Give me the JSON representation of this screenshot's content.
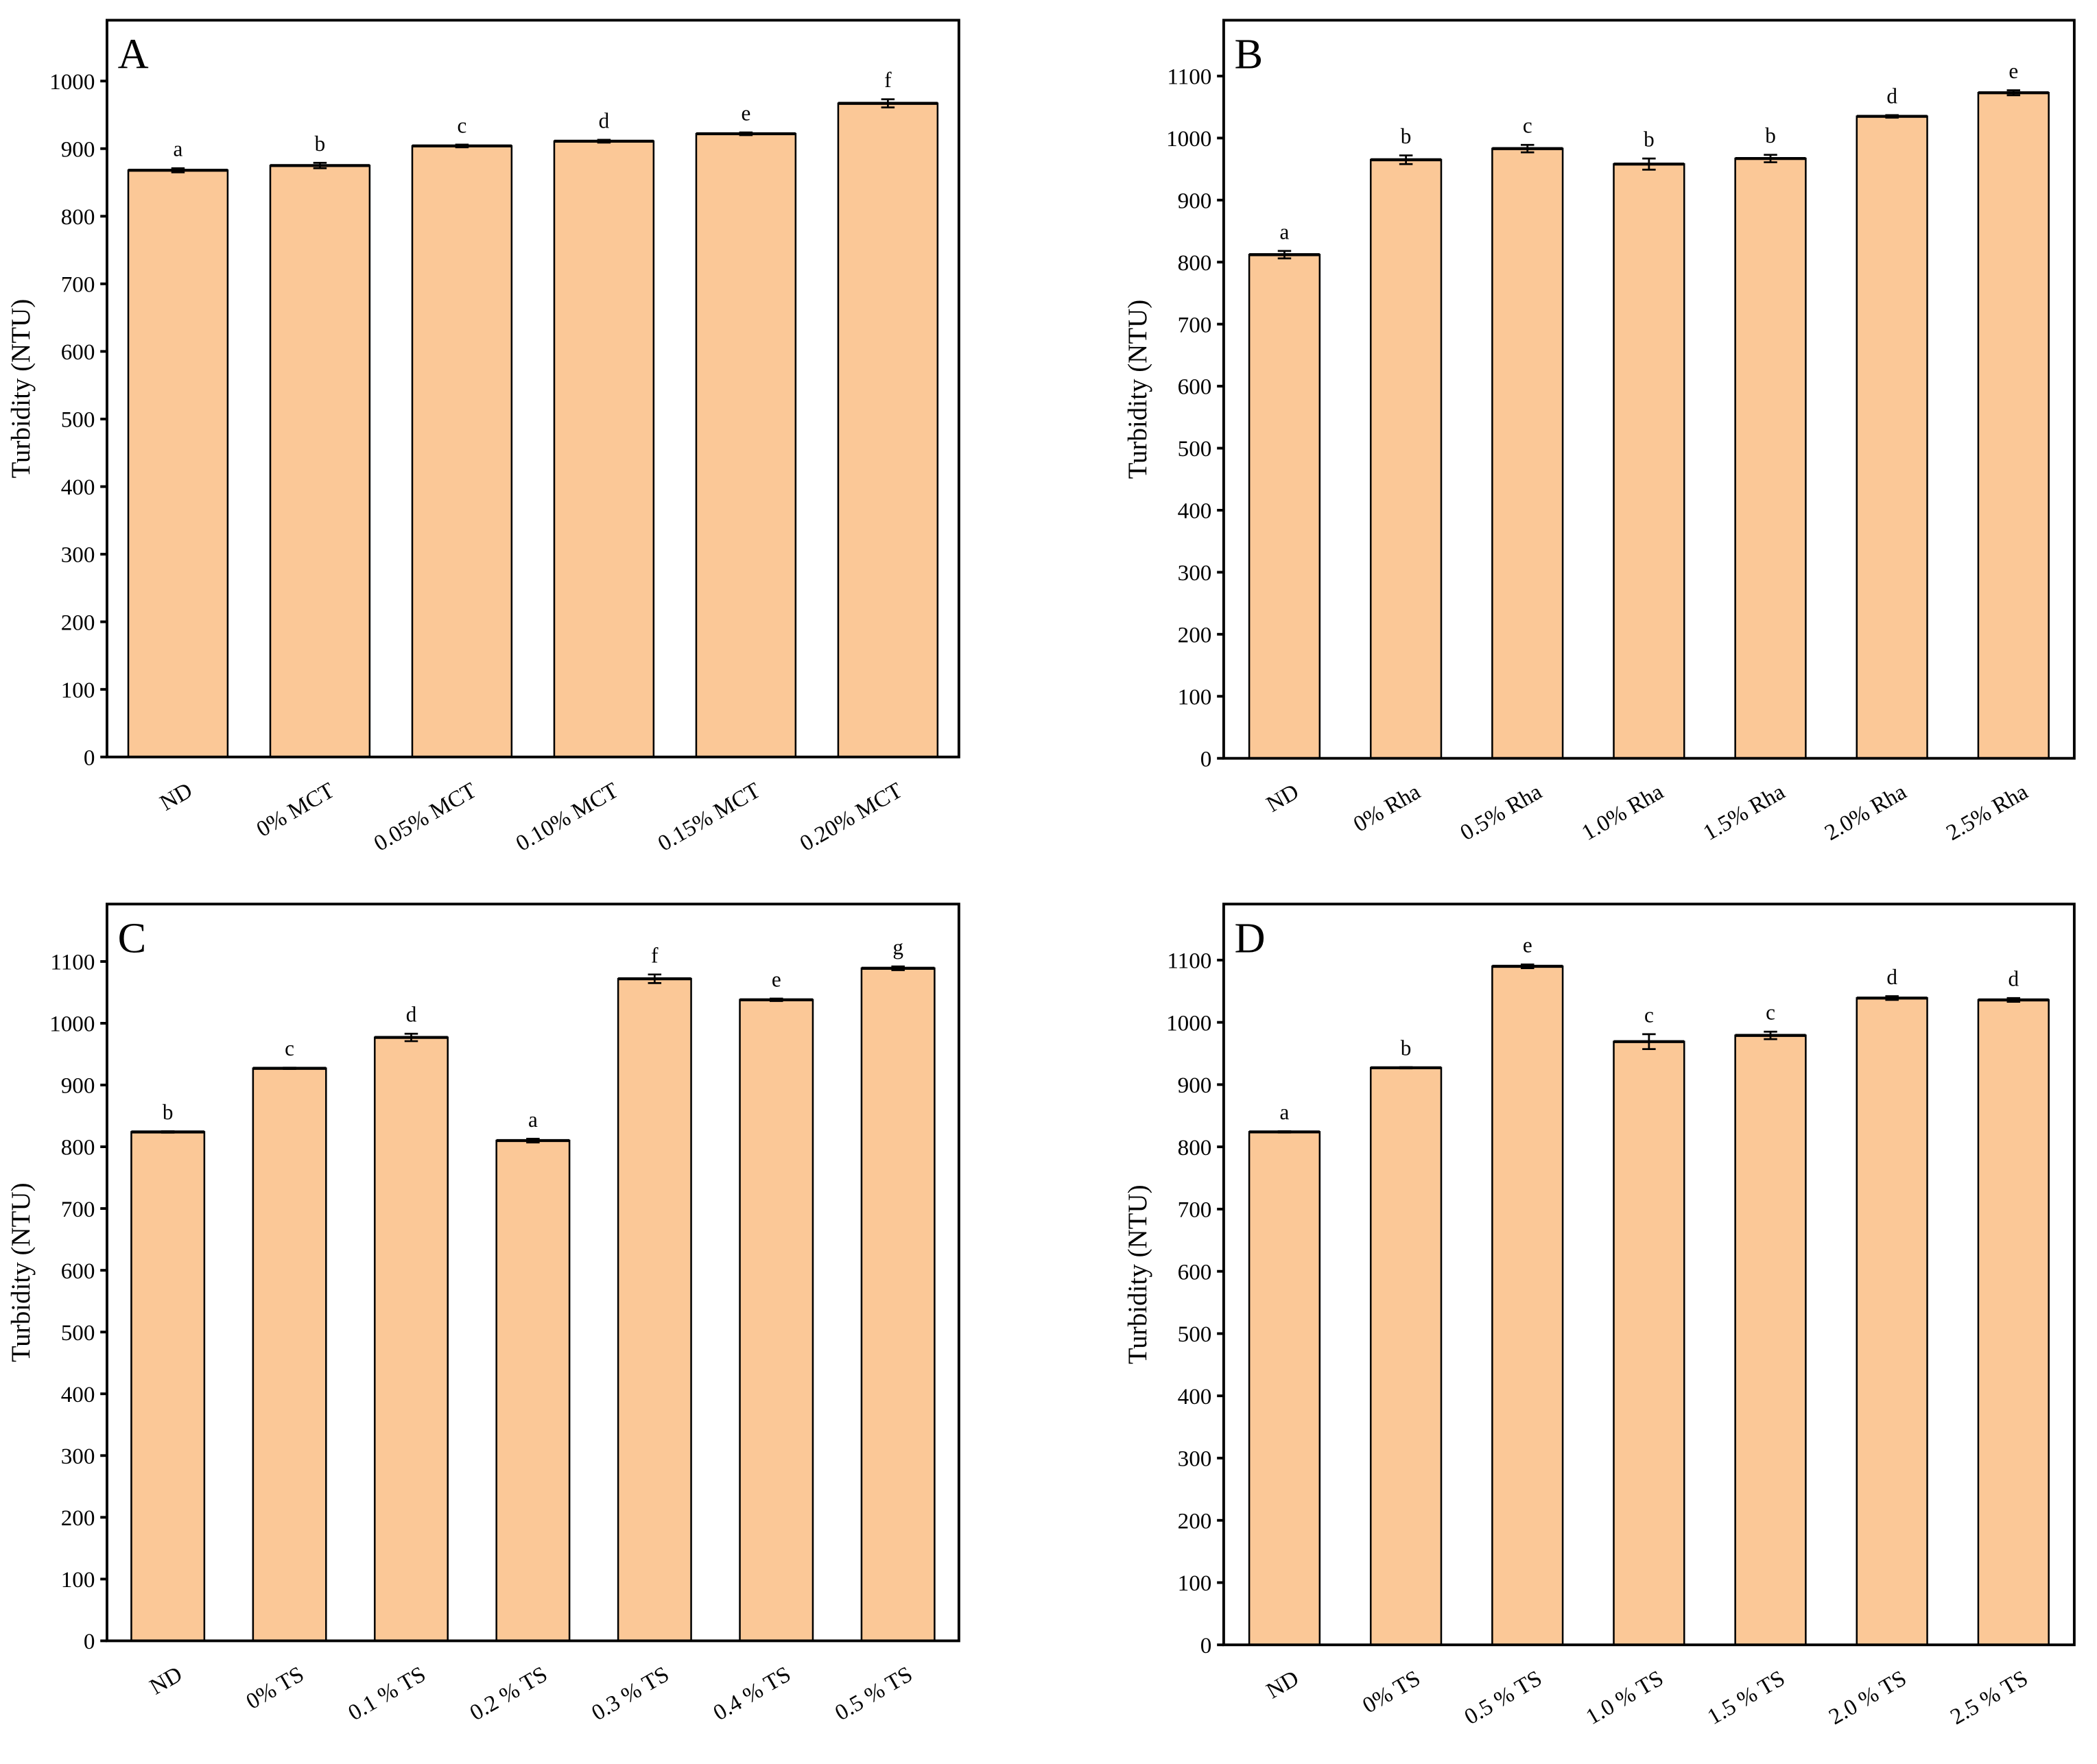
{
  "colors": {
    "bar_fill": "#FBC897",
    "stroke": "#000000"
  },
  "chart_data": [
    {
      "type": "bar",
      "panel_label": "A",
      "title": "",
      "xlabel": "",
      "ylabel": "Turbidity (NTU)",
      "ylim": [
        0,
        1090
      ],
      "yticks": [
        0,
        100,
        200,
        300,
        400,
        500,
        600,
        700,
        800,
        900,
        1000
      ],
      "grid": false,
      "categories": [
        "ND",
        "0% MCT",
        "0.05% MCT",
        "0.10% MCT",
        "0.15% MCT",
        "0.20% MCT"
      ],
      "values": [
        868,
        875,
        904,
        911,
        922,
        967
      ],
      "errors": [
        3,
        4,
        2,
        2,
        2,
        6
      ],
      "letters": [
        "a",
        "b",
        "c",
        "d",
        "e",
        "f"
      ]
    },
    {
      "type": "bar",
      "panel_label": "B",
      "title": "",
      "xlabel": "",
      "ylabel": "Turbidity (NTU)",
      "ylim": [
        0,
        1190
      ],
      "yticks": [
        0,
        100,
        200,
        300,
        400,
        500,
        600,
        700,
        800,
        900,
        1000,
        1100
      ],
      "grid": false,
      "categories": [
        "ND",
        "0% Rha",
        "0.5% Rha",
        "1.0% Rha",
        "1.5% Rha",
        "2.0% Rha",
        "2.5% Rha"
      ],
      "values": [
        812,
        965,
        983,
        958,
        967,
        1035,
        1073
      ],
      "errors": [
        6,
        7,
        6,
        9,
        6,
        2,
        4
      ],
      "letters": [
        "a",
        "b",
        "c",
        "b",
        "b",
        "d",
        "e"
      ]
    },
    {
      "type": "bar",
      "panel_label": "C",
      "title": "",
      "xlabel": "",
      "ylabel": "Turbidity (NTU)",
      "ylim": [
        0,
        1193
      ],
      "yticks": [
        0,
        100,
        200,
        300,
        400,
        500,
        600,
        700,
        800,
        900,
        1000,
        1100
      ],
      "grid": false,
      "categories": [
        "ND",
        "0%  TS",
        "0.1 % TS",
        "0.2 % TS",
        "0.3 % TS",
        "0.4 % TS",
        "0.5 % TS"
      ],
      "values": [
        824,
        927,
        977,
        810,
        1072,
        1038,
        1089
      ],
      "errors": [
        1,
        1,
        6,
        3,
        7,
        2,
        3
      ],
      "letters": [
        "b",
        "c",
        "d",
        "a",
        "f",
        "e",
        "g"
      ]
    },
    {
      "type": "bar",
      "panel_label": "D",
      "title": "",
      "xlabel": "",
      "ylabel": "Turbidity (NTU)",
      "ylim": [
        0,
        1190
      ],
      "yticks": [
        0,
        100,
        200,
        300,
        400,
        500,
        600,
        700,
        800,
        900,
        1000,
        1100
      ],
      "grid": false,
      "categories": [
        "ND",
        "0%  TS",
        "0.5 % TS",
        "1.0 % TS",
        "1.5 % TS",
        "2.0 % TS",
        "2.5 % TS"
      ],
      "values": [
        824,
        927,
        1090,
        969,
        979,
        1039,
        1036
      ],
      "errors": [
        1,
        1,
        3,
        12,
        6,
        3,
        3
      ],
      "letters": [
        "a",
        "b",
        "e",
        "c",
        "c",
        "d",
        "d"
      ]
    }
  ]
}
